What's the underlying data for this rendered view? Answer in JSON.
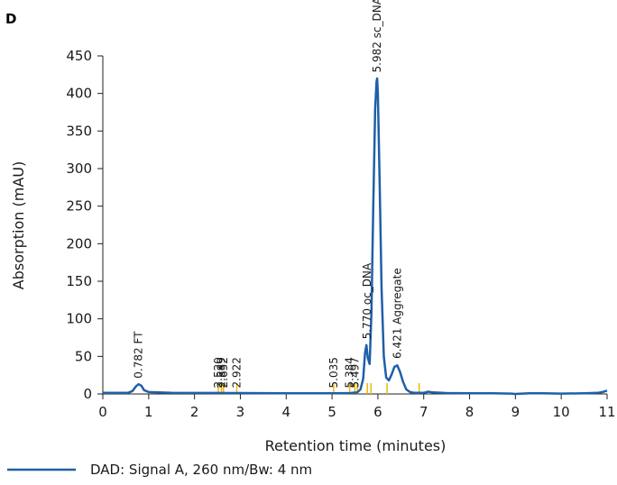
{
  "panel_label": "D",
  "chart_data": {
    "type": "line",
    "xlabel": "Retention time (minutes)",
    "ylabel": "Absorption (mAU)",
    "xlim": [
      0,
      11
    ],
    "ylim": [
      0,
      450
    ],
    "x_ticks": [
      0,
      1,
      2,
      3,
      4,
      5,
      6,
      7,
      8,
      9,
      10,
      11
    ],
    "y_ticks": [
      0,
      50,
      100,
      150,
      200,
      250,
      300,
      350,
      400,
      450
    ],
    "grid": false,
    "legend_position": "bottom-left",
    "series": [
      {
        "name": "DAD: Signal A, 260 nm/Bw: 4 nm",
        "color": "#1f5fa8",
        "points": [
          [
            0.0,
            1.5
          ],
          [
            0.55,
            1.5
          ],
          [
            0.65,
            4
          ],
          [
            0.72,
            10
          ],
          [
            0.78,
            13
          ],
          [
            0.84,
            11
          ],
          [
            0.9,
            5
          ],
          [
            1.0,
            2.5
          ],
          [
            1.5,
            1.5
          ],
          [
            2.5,
            1.3
          ],
          [
            3.0,
            1.2
          ],
          [
            4.0,
            1.0
          ],
          [
            5.0,
            1.0
          ],
          [
            5.4,
            1.2
          ],
          [
            5.55,
            2
          ],
          [
            5.62,
            6
          ],
          [
            5.68,
            20
          ],
          [
            5.72,
            55
          ],
          [
            5.75,
            65
          ],
          [
            5.78,
            48
          ],
          [
            5.82,
            40
          ],
          [
            5.86,
            110
          ],
          [
            5.9,
            250
          ],
          [
            5.94,
            380
          ],
          [
            5.97,
            415
          ],
          [
            5.985,
            420
          ],
          [
            6.0,
            400
          ],
          [
            6.04,
            280
          ],
          [
            6.08,
            140
          ],
          [
            6.13,
            50
          ],
          [
            6.18,
            22
          ],
          [
            6.24,
            18
          ],
          [
            6.3,
            26
          ],
          [
            6.36,
            36
          ],
          [
            6.42,
            38
          ],
          [
            6.48,
            30
          ],
          [
            6.55,
            16
          ],
          [
            6.62,
            6
          ],
          [
            6.7,
            2.5
          ],
          [
            6.8,
            1.5
          ],
          [
            7.0,
            1.5
          ],
          [
            7.1,
            3
          ],
          [
            7.2,
            2
          ],
          [
            7.5,
            1.2
          ],
          [
            8.0,
            1.0
          ],
          [
            8.5,
            1.0
          ],
          [
            8.9,
            0.5
          ],
          [
            9.0,
            0.0
          ],
          [
            9.3,
            1.0
          ],
          [
            9.6,
            1.0
          ],
          [
            10.0,
            0.5
          ],
          [
            10.5,
            0.8
          ],
          [
            10.8,
            1.5
          ],
          [
            10.9,
            2.5
          ],
          [
            11.0,
            4.5
          ]
        ]
      }
    ],
    "peak_labels": [
      {
        "text": "0.782  FT",
        "x": 0.782,
        "y": 16
      },
      {
        "text": "2.520",
        "x": 2.52,
        "y": 3
      },
      {
        "text": "2.589",
        "x": 2.589,
        "y": 3
      },
      {
        "text": "2.632",
        "x": 2.632,
        "y": 3
      },
      {
        "text": "2.922",
        "x": 2.922,
        "y": 3
      },
      {
        "text": "5.035",
        "x": 5.035,
        "y": 3
      },
      {
        "text": "5.384",
        "x": 5.384,
        "y": 3
      },
      {
        "text": "5.497",
        "x": 5.497,
        "y": 3
      },
      {
        "text": "5.770  oc_DNA",
        "x": 5.77,
        "y": 68
      },
      {
        "text": "5.982  sc_DNA",
        "x": 5.982,
        "y": 423
      },
      {
        "text": "6.421  Aggregate",
        "x": 6.421,
        "y": 42
      }
    ],
    "integration_markers": {
      "color": "#f2b705",
      "x": [
        2.52,
        2.589,
        2.632,
        2.922,
        5.035,
        5.384,
        5.497,
        5.55,
        5.77,
        5.85,
        6.2,
        6.9
      ]
    }
  }
}
